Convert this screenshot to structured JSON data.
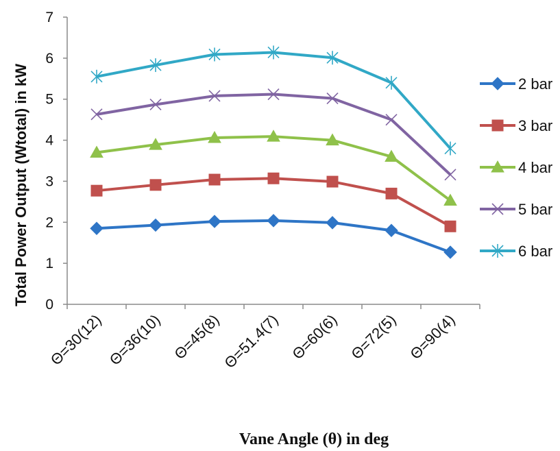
{
  "chart_data": {
    "type": "line",
    "title": "",
    "xlabel": "Vane Angle (θ) in deg",
    "ylabel": "Total Power Output (Wtotal) in kW",
    "categories": [
      "Θ=30(12)",
      "Θ=36(10)",
      "Θ=45(8)",
      "Θ=51.4(7)",
      "Θ=60(6)",
      "Θ=72(5)",
      "Θ=90(4)"
    ],
    "ylim": [
      0,
      7
    ],
    "yticks": [
      "0",
      "1",
      "2",
      "3",
      "4",
      "5",
      "6",
      "7"
    ],
    "grid": false,
    "legend_position": "right",
    "series": [
      {
        "name": "2 bar",
        "values": [
          1.85,
          1.93,
          2.02,
          2.04,
          1.99,
          1.8,
          1.27
        ],
        "color": "#2e75c6",
        "marker": "diamond"
      },
      {
        "name": "3 bar",
        "values": [
          2.77,
          2.91,
          3.04,
          3.07,
          2.99,
          2.7,
          1.9
        ],
        "color": "#c0504d",
        "marker": "square"
      },
      {
        "name": "4 bar",
        "values": [
          3.7,
          3.89,
          4.06,
          4.09,
          4.0,
          3.6,
          2.53
        ],
        "color": "#8fc14a",
        "marker": "triangle"
      },
      {
        "name": "5 bar",
        "values": [
          4.63,
          4.87,
          5.08,
          5.12,
          5.02,
          4.5,
          3.16
        ],
        "color": "#8064a2",
        "marker": "x"
      },
      {
        "name": "6 bar",
        "values": [
          5.55,
          5.83,
          6.09,
          6.14,
          6.01,
          5.4,
          3.8
        ],
        "color": "#31a8c6",
        "marker": "star"
      }
    ]
  }
}
